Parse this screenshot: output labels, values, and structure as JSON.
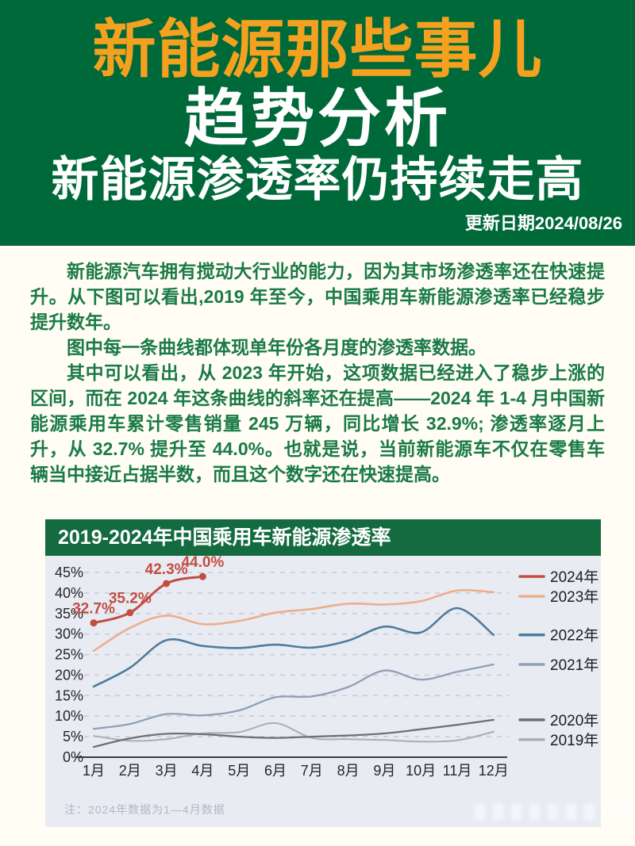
{
  "colors": {
    "banner_green": "#00693a",
    "chart_header_green": "#156b40",
    "title_orange": "#f5a120",
    "body_text_green": "#1a7a46",
    "plot_background": "#e9ebf3",
    "page_background": "#fffdf4",
    "grid_color": "#c9cbd6",
    "axis_text": "#26262c"
  },
  "header": {
    "title1": "新能源那些事儿",
    "title2": "趋势分析",
    "title3": "新能源渗透率仍持续走高",
    "date": "更新日期2024/08/26"
  },
  "body": {
    "paragraphs": [
      "新能源汽车拥有搅动大行业的能力，因为其市场渗透率还在快速提升。从下图可以看出,2019 年至今，中国乘用车新能源渗透率已经稳步提升数年。",
      "图中每一条曲线都体现单年份各月度的渗透率数据。",
      "其中可以看出，从 2023 年开始，这项数据已经进入了稳步上涨的区间，而在 2024 年这条曲线的斜率还在提高——2024 年 1-4 月中国新能源乘用车累计零售销量 245 万辆，同比增长 32.9%; 渗透率逐月上升，从 32.7% 提升至 44.0%。也就是说，当前新能源车不仅在零售车辆当中接近占据半数，而且这个数字还在快速提高。"
    ]
  },
  "chart_data": {
    "type": "line",
    "title": "2019-2024年中国乘用车新能源渗透率",
    "xlabel": "",
    "ylabel": "",
    "x": [
      "1月",
      "2月",
      "3月",
      "4月",
      "5月",
      "6月",
      "7月",
      "8月",
      "9月",
      "10月",
      "11月",
      "12月"
    ],
    "y_ticks": [
      "0%",
      "5%",
      "10%",
      "15%",
      "20%",
      "25%",
      "30%",
      "35%",
      "40%",
      "45%"
    ],
    "ylim": [
      0,
      45
    ],
    "grid": true,
    "legend_position": "right",
    "note": "注：2024年数据为1—4月数据",
    "series": [
      {
        "name": "2024年",
        "color": "#c14e42",
        "values": [
          32.7,
          35.2,
          42.3,
          44.0
        ],
        "point_labels": [
          "32.7%",
          "35.2%",
          "42.3%",
          "44.0%"
        ],
        "markers": true
      },
      {
        "name": "2023年",
        "color": "#ecae8d",
        "values": [
          25.9,
          31.5,
          34.5,
          32.4,
          33.2,
          35.2,
          36.1,
          37.4,
          37.2,
          38.0,
          40.6,
          40.2
        ]
      },
      {
        "name": "2022年",
        "color": "#4d7c9e",
        "values": [
          17.2,
          21.8,
          28.5,
          27.1,
          26.6,
          27.4,
          26.7,
          28.4,
          31.8,
          30.4,
          36.3,
          29.8
        ]
      },
      {
        "name": "2021年",
        "color": "#909fb8",
        "values": [
          6.9,
          8.1,
          10.5,
          10.2,
          11.4,
          14.6,
          14.8,
          17.1,
          21.1,
          18.9,
          20.8,
          22.6
        ]
      },
      {
        "name": "2020年",
        "color": "#6d7077",
        "values": [
          2.5,
          4.6,
          5.7,
          5.6,
          5.0,
          4.7,
          5.0,
          5.3,
          5.8,
          6.8,
          7.9,
          9.1
        ]
      },
      {
        "name": "2019年",
        "color": "#aaadb5",
        "values": [
          5.2,
          4.0,
          4.4,
          5.8,
          6.1,
          8.3,
          4.7,
          4.4,
          4.2,
          3.8,
          4.1,
          6.2
        ]
      }
    ]
  }
}
